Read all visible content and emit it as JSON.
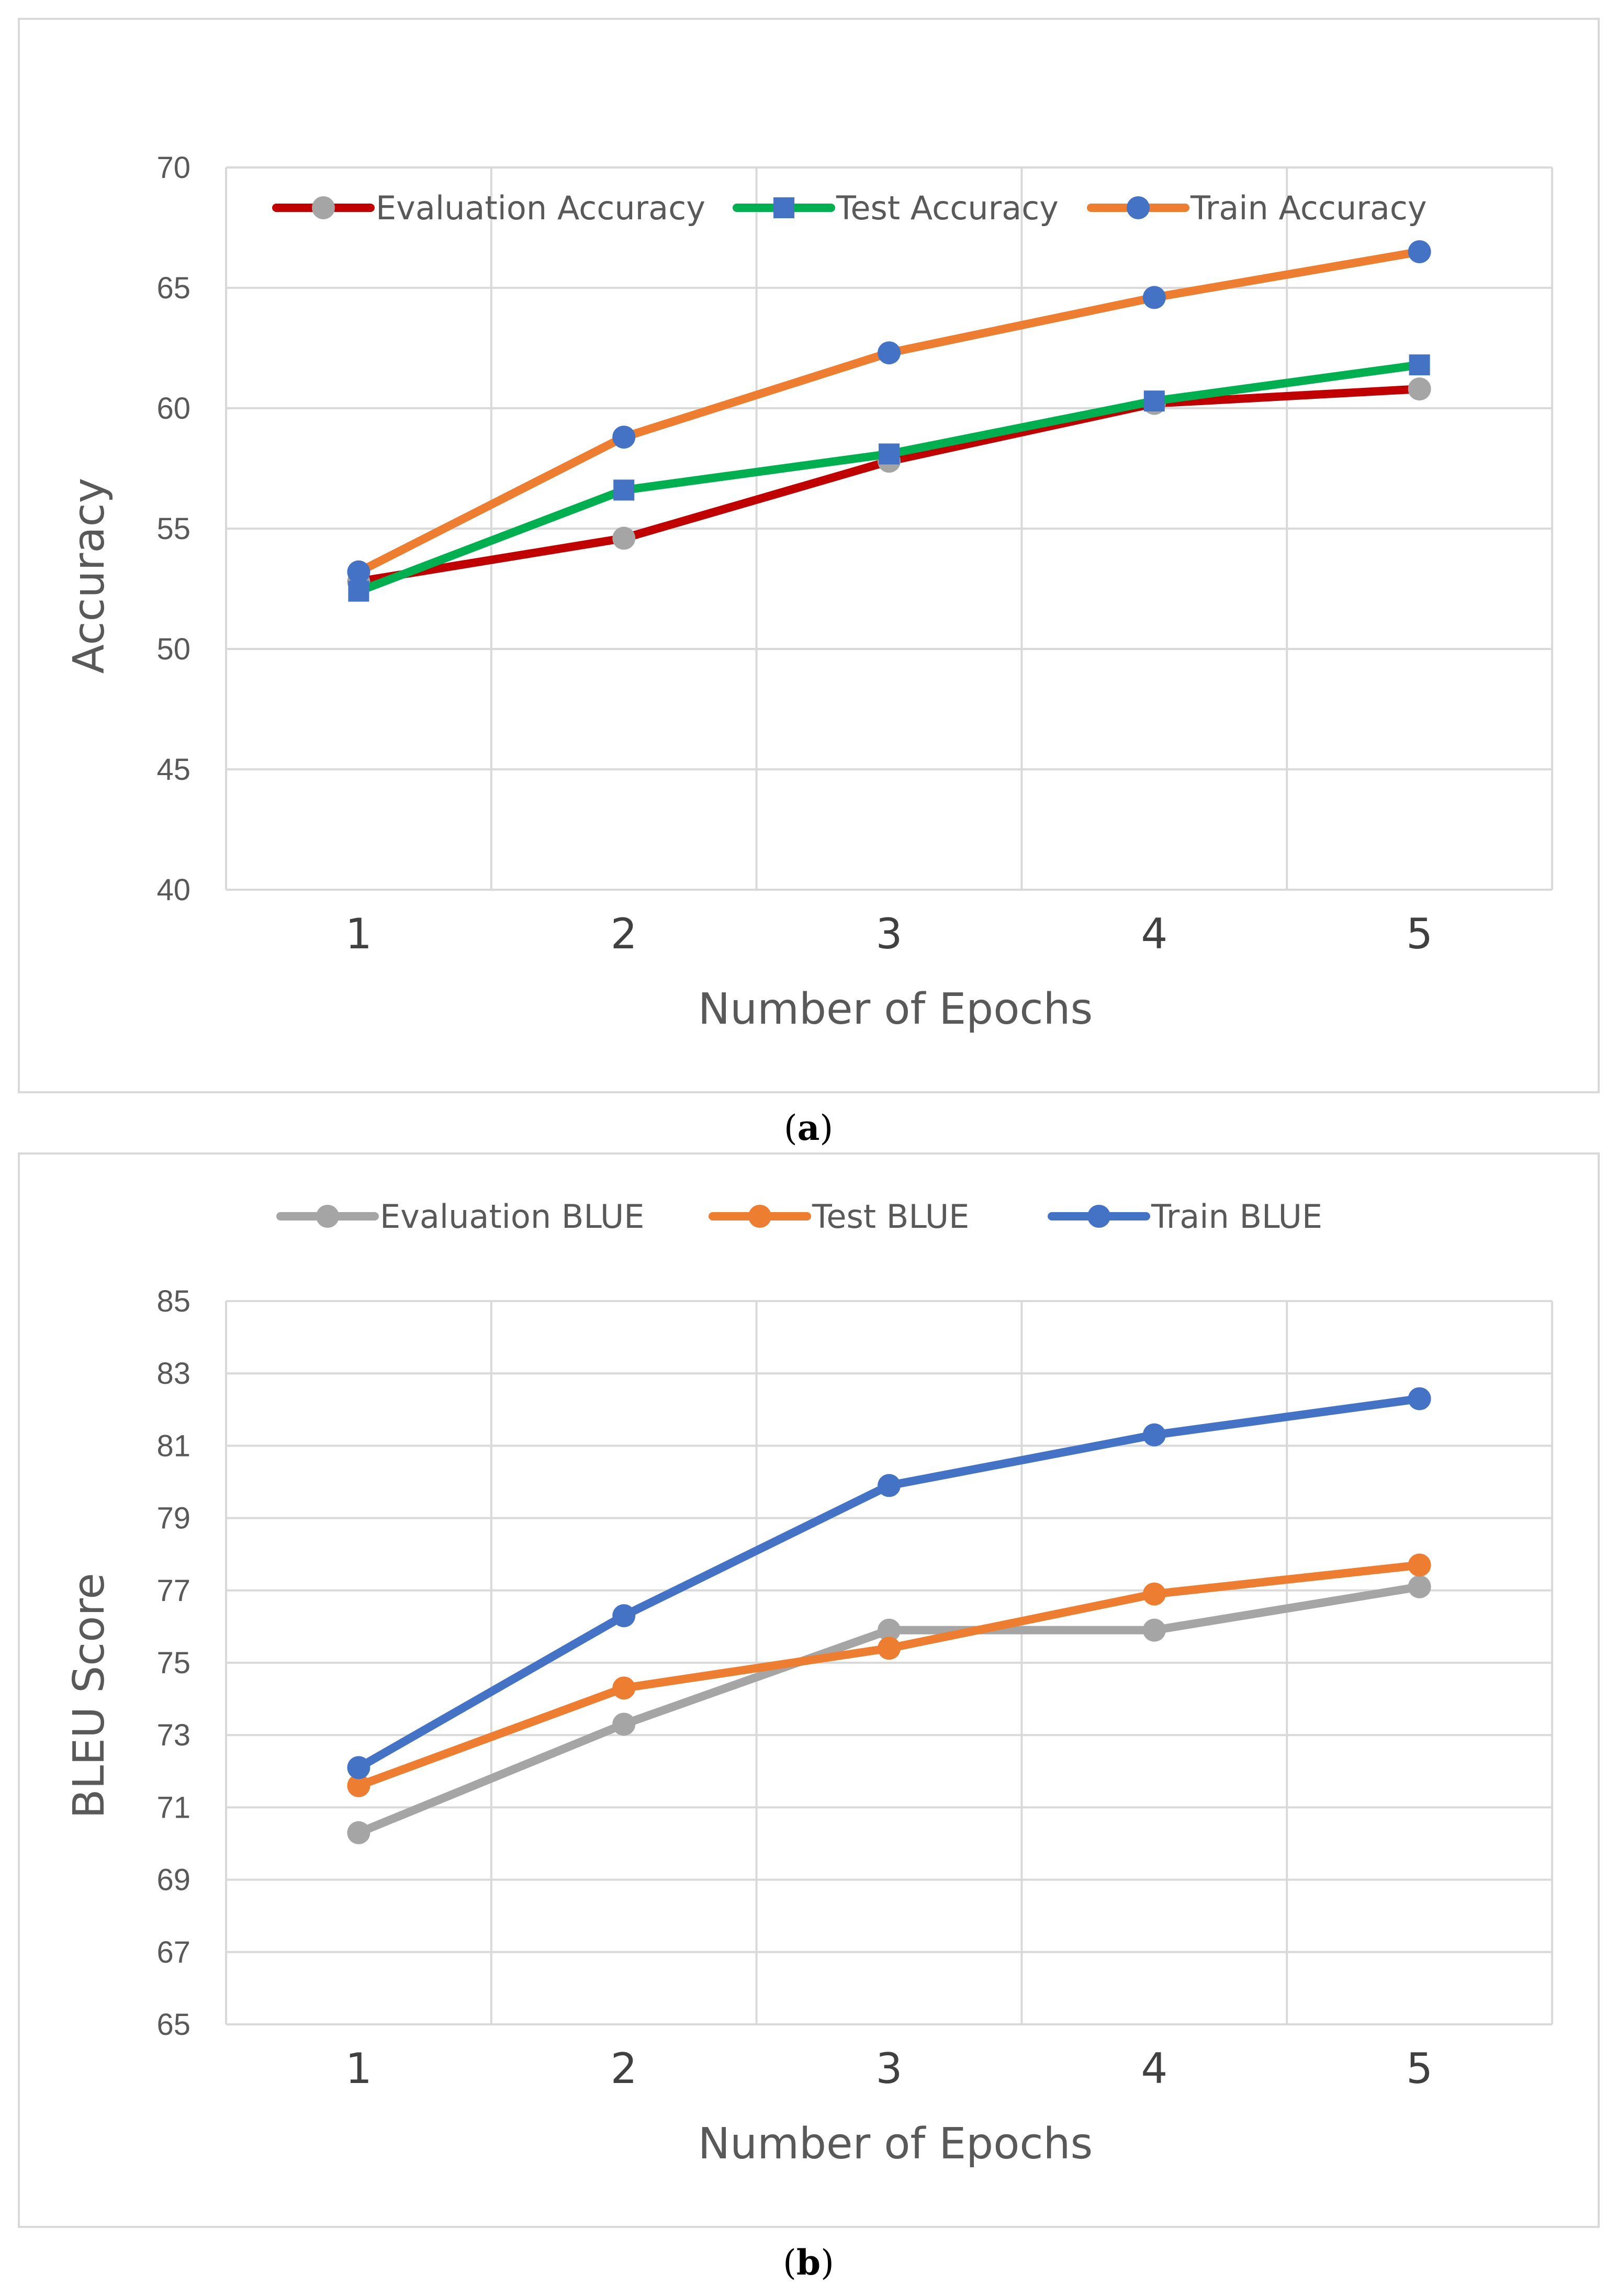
{
  "chart_data": [
    {
      "type": "line",
      "caption": {
        "open": "(",
        "letter": "a",
        "close": ")"
      },
      "title": "",
      "xlabel": "Number of Epochs",
      "ylabel": "Accuracy",
      "categories": [
        "1",
        "2",
        "3",
        "4",
        "5"
      ],
      "ylim": [
        40,
        70
      ],
      "yticks": [
        "40",
        "45",
        "50",
        "55",
        "60",
        "65",
        "70"
      ],
      "grid": true,
      "legend": "top",
      "series": [
        {
          "name": "Evaluation Accuracy",
          "values": [
            52.8,
            54.6,
            57.8,
            60.2,
            60.8
          ],
          "line_color": "#C00000",
          "marker_color": "#A5A5A5",
          "marker": "circle"
        },
        {
          "name": "Test Accuracy",
          "values": [
            52.4,
            56.6,
            58.1,
            60.3,
            61.8
          ],
          "line_color": "#00B050",
          "marker_color": "#4472C4",
          "marker": "square"
        },
        {
          "name": "Train Accuracy",
          "values": [
            53.2,
            58.8,
            62.3,
            64.6,
            66.5
          ],
          "line_color": "#ED7D31",
          "marker_color": "#4472C4",
          "marker": "circle"
        }
      ]
    },
    {
      "type": "line",
      "caption": {
        "open": "(",
        "letter": "b",
        "close": ")"
      },
      "title": "",
      "xlabel": "Number of Epochs",
      "ylabel": "BLEU Score",
      "categories": [
        "1",
        "2",
        "3",
        "4",
        "5"
      ],
      "ylim": [
        65,
        85
      ],
      "yticks": [
        "65",
        "67",
        "69",
        "71",
        "73",
        "75",
        "77",
        "79",
        "81",
        "83",
        "85"
      ],
      "grid": true,
      "legend": "top",
      "series": [
        {
          "name": "Evaluation BLUE",
          "values": [
            70.3,
            73.3,
            75.9,
            75.9,
            77.1
          ],
          "line_color": "#A5A5A5",
          "marker_color": "#A5A5A5",
          "marker": "circle"
        },
        {
          "name": "Test BLUE",
          "values": [
            71.6,
            74.3,
            75.4,
            76.9,
            77.7
          ],
          "line_color": "#ED7D31",
          "marker_color": "#ED7D31",
          "marker": "circle"
        },
        {
          "name": "Train BLUE",
          "values": [
            72.1,
            76.3,
            79.9,
            81.3,
            82.3
          ],
          "line_color": "#4472C4",
          "marker_color": "#4472C4",
          "marker": "circle"
        }
      ]
    }
  ]
}
